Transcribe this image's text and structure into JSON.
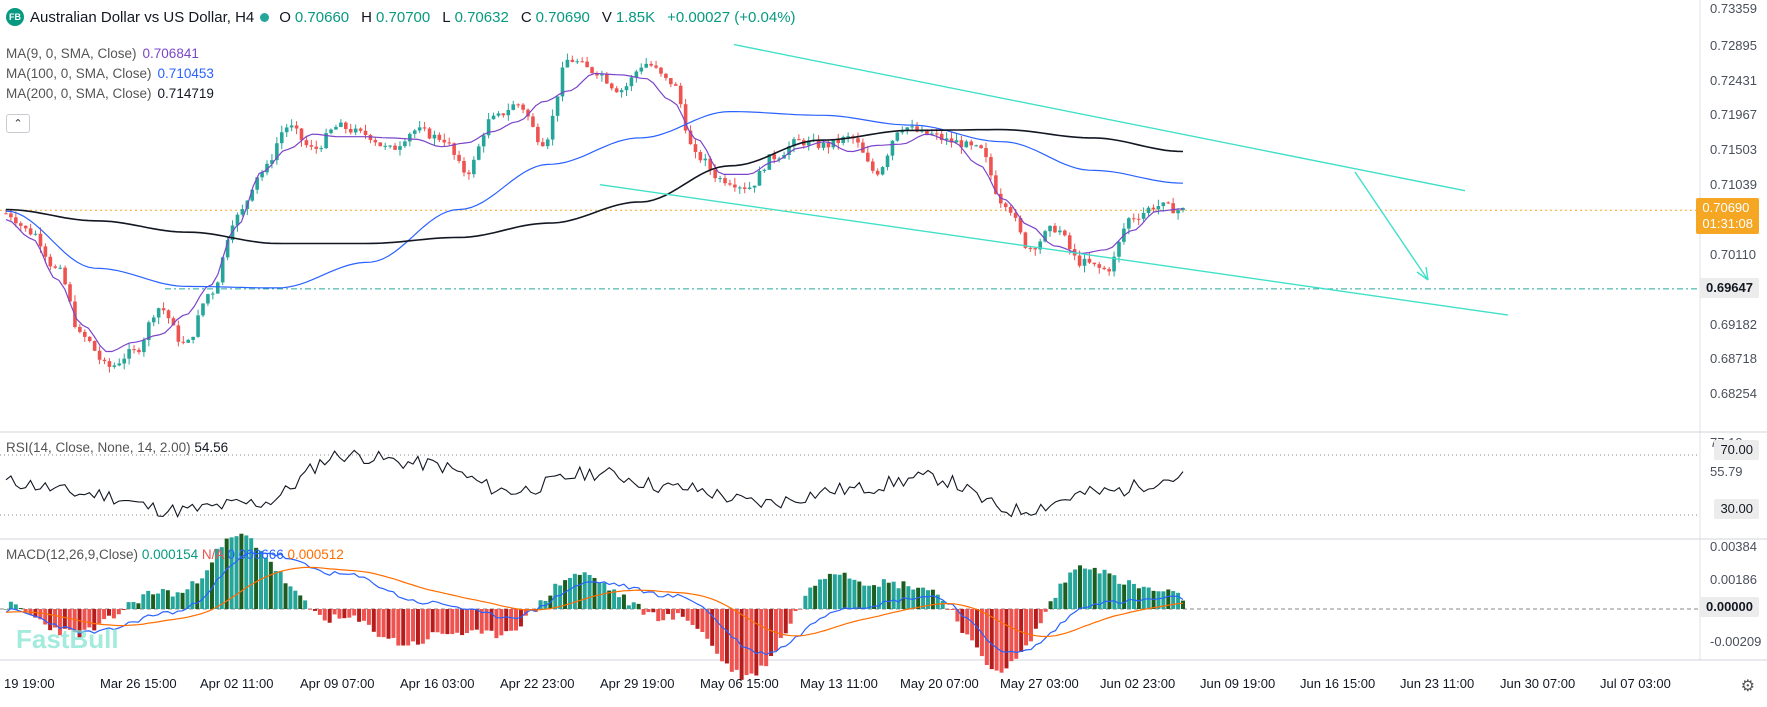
{
  "header": {
    "logo_text": "FB",
    "symbol": "Australian Dollar vs US Dollar, H4",
    "ohlc": [
      {
        "k": "O",
        "v": "0.70660"
      },
      {
        "k": "H",
        "v": "0.70700"
      },
      {
        "k": "L",
        "v": "0.70632"
      },
      {
        "k": "C",
        "v": "0.70690"
      },
      {
        "k": "V",
        "v": "1.85K"
      }
    ],
    "change": "+0.00027 (+0.04%)"
  },
  "moving_averages": [
    {
      "label": "MA(9, 0, SMA, Close)",
      "value": "0.706841",
      "color": "#7b45c9"
    },
    {
      "label": "MA(100, 0, SMA, Close)",
      "value": "0.710453",
      "color": "#2962ff"
    },
    {
      "label": "MA(200, 0, SMA, Close)",
      "value": "0.714719",
      "color": "#131722"
    }
  ],
  "collapse_icon": "chevron-up-icon",
  "price_axis": {
    "ticks": [
      "0.73359",
      "0.72895",
      "0.72431",
      "0.71967",
      "0.71503",
      "0.71039",
      "0.70110",
      "0.69182",
      "0.68718",
      "0.68254"
    ],
    "current_price": "0.70690",
    "countdown": "01:31:08",
    "support_level": "0.69647"
  },
  "rsi": {
    "label": "RSI(14, Close, None, 14, 2.00)",
    "value": "54.56",
    "axis": [
      "77.10",
      "55.79"
    ],
    "bands": [
      "70.00",
      "30.00"
    ]
  },
  "macd": {
    "label": "MACD(12,26,9,Close)",
    "macd_value": "0.000154",
    "na": "N/A",
    "signal_value": "0.000666",
    "hist_value": "0.000512",
    "axis": [
      "0.00384",
      "0.00186",
      "-0.00209"
    ],
    "zero": "0.00000"
  },
  "time_axis": [
    "19 19:00",
    "Mar 26 15:00",
    "Apr 02 11:00",
    "Apr 09 07:00",
    "Apr 16 03:00",
    "Apr 22 23:00",
    "Apr 29 19:00",
    "May 06 15:00",
    "May 13 11:00",
    "May 20 07:00",
    "May 27 03:00",
    "Jun 02 23:00",
    "Jun 09 19:00",
    "Jun 16 15:00",
    "Jun 23 11:00",
    "Jun 30 07:00",
    "Jul 07 03:00"
  ],
  "watermark": "FastBull",
  "settings_icon": "gear-icon",
  "colors": {
    "up": "#26a69a",
    "down": "#ef5350",
    "channel": "#40e0c8",
    "ma9": "#7b45c9",
    "ma100": "#2962ff",
    "ma200": "#131722"
  },
  "chart_data": {
    "type": "line",
    "title": "Australian Dollar vs US Dollar, H4",
    "x": [
      "Mar 19",
      "Mar 26",
      "Apr 02",
      "Apr 09",
      "Apr 16",
      "Apr 22",
      "Apr 29",
      "May 06",
      "May 13",
      "May 20",
      "May 27",
      "Jun 02",
      "Jun 09",
      "Jun 16"
    ],
    "series": [
      {
        "name": "Close",
        "values": [
          0.7065,
          0.6895,
          0.688,
          0.707,
          0.7185,
          0.7165,
          0.7175,
          0.7265,
          0.723,
          0.711,
          0.7165,
          0.7155,
          0.699,
          0.7069
        ]
      },
      {
        "name": "MA(100, 0, SMA, Close)",
        "values": [
          0.7068,
          0.6992,
          0.6968,
          0.6966,
          0.7,
          0.707,
          0.713,
          0.7165,
          0.72,
          0.7195,
          0.7182,
          0.716,
          0.7122,
          0.7105
        ]
      },
      {
        "name": "MA(200, 0, SMA, Close)",
        "values": [
          0.707,
          0.7055,
          0.704,
          0.7025,
          0.7025,
          0.7033,
          0.7052,
          0.708,
          0.7128,
          0.7162,
          0.7175,
          0.7176,
          0.7165,
          0.7147
        ]
      }
    ],
    "ylim": [
      0.68,
      0.7342
    ],
    "support_level": 0.69647,
    "channel_upper": [
      {
        "x": "May 13",
        "y": 0.729
      },
      {
        "x": "Jun 23",
        "y": 0.7095
      }
    ],
    "channel_lower": [
      {
        "x": "Apr 29",
        "y": 0.7103
      },
      {
        "x": "Jun 23",
        "y": 0.693
      }
    ],
    "rsi_values": [
      52,
      44,
      33,
      38,
      70,
      64,
      46,
      58,
      48,
      38,
      47,
      55,
      33,
      45,
      55
    ],
    "macd_values": [
      -0.0001,
      -0.0015,
      -0.0002,
      0.0036,
      0.0022,
      0.0004,
      -0.0005,
      0.0017,
      0.0008,
      -0.0028,
      0.0001,
      0.0008,
      -0.0028,
      0.0004,
      0.0007
    ]
  }
}
